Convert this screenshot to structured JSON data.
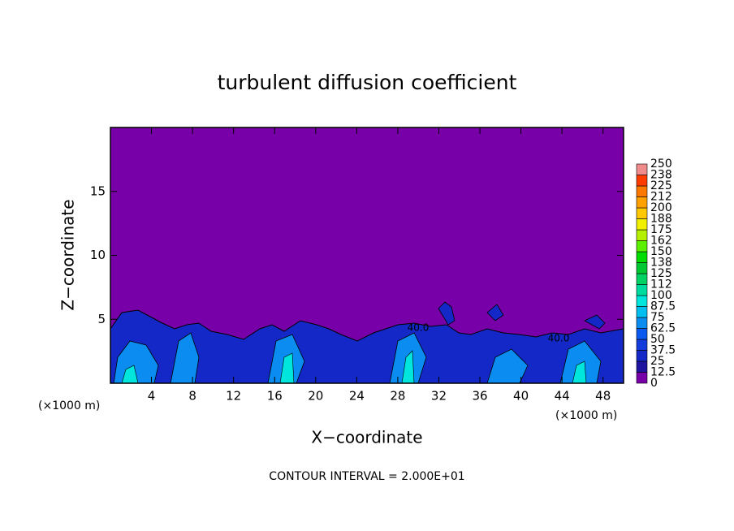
{
  "chart_data": {
    "type": "contour",
    "title": "turbulent diffusion coefficient",
    "xlabel": "X−coordinate",
    "ylabel": "Z−coordinate",
    "x_unit_left": "(×1000 m)",
    "x_unit_right": "(×1000 m)",
    "footnote": "CONTOUR INTERVAL = 2.000E+01",
    "contour_labels": [
      "40.0",
      "40.0"
    ],
    "xlim": [
      0,
      50
    ],
    "xticks": [
      4,
      8,
      12,
      16,
      20,
      24,
      28,
      32,
      36,
      40,
      44,
      48
    ],
    "ylim": [
      0,
      20
    ],
    "yticks": [
      5,
      10,
      15
    ],
    "levels": [
      0,
      12.5,
      25,
      37.5,
      50,
      62.5,
      75,
      87.5,
      100,
      {
        "value": 112.5,
        "label": "112"
      },
      125,
      {
        "value": 137.5,
        "label": "138"
      },
      150,
      {
        "value": 162.5,
        "label": "162"
      },
      175,
      {
        "value": 187.5,
        "label": "188"
      },
      200,
      {
        "value": 212.5,
        "label": "212"
      },
      225,
      {
        "value": 237.5,
        "label": "238"
      },
      250
    ],
    "level_colors": [
      "#7800a8",
      "#1e14a0",
      "#1428c8",
      "#143cdc",
      "#0a5af0",
      "#0a8cf0",
      "#00bef0",
      "#00e6dc",
      "#00dca0",
      "#00d264",
      "#00c832",
      "#00dc00",
      "#5af000",
      "#b4f000",
      "#f0f000",
      "#ffc800",
      "#ffa000",
      "#ff7800",
      "#ff3c00",
      "#f08c8c"
    ]
  }
}
